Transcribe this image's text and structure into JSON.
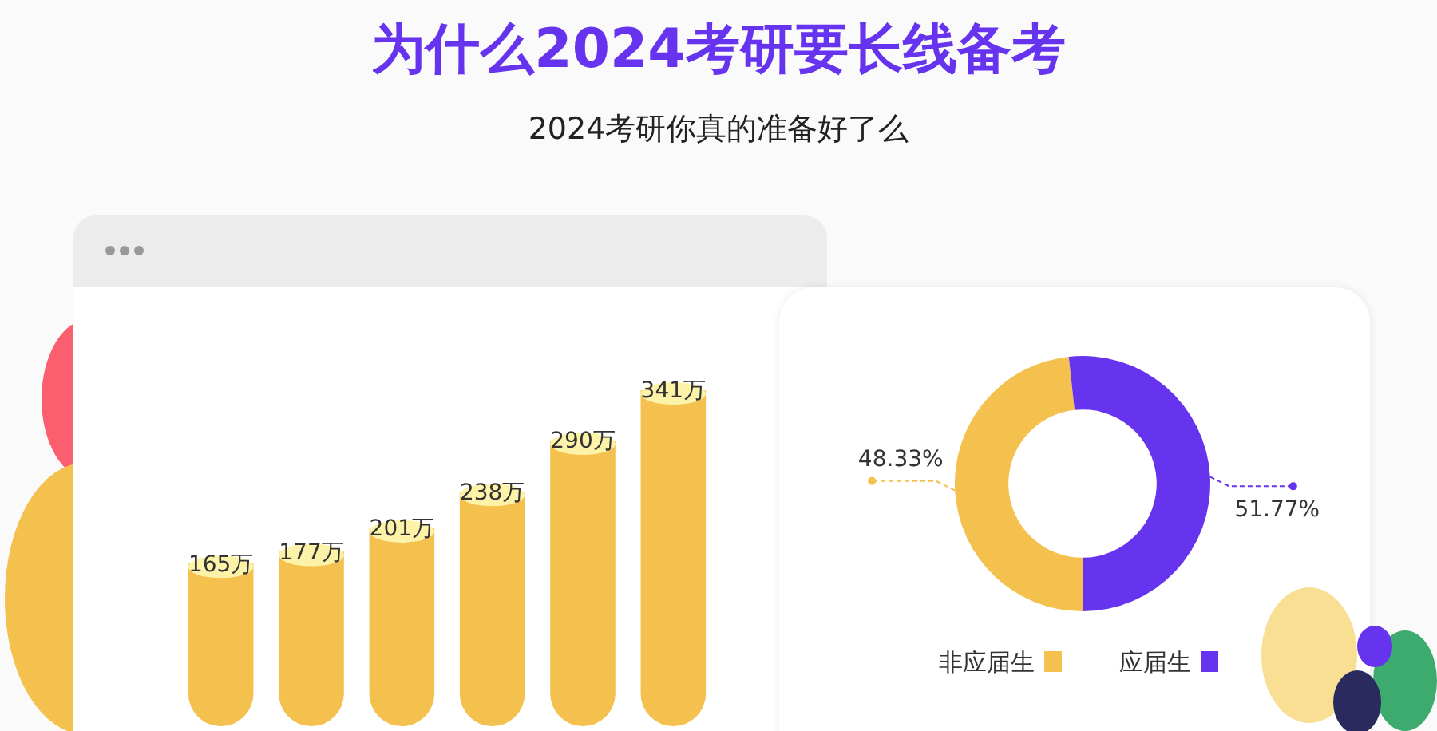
{
  "chart_data": [
    {
      "type": "bar",
      "title": "为什么2024考研要长线备考",
      "subtitle": "2024考研你真的准备好了么",
      "categories": [
        null,
        null,
        null,
        null,
        null,
        null
      ],
      "values": [
        165,
        177,
        201,
        238,
        290,
        341
      ],
      "value_labels": [
        "165万",
        "177万",
        "201万",
        "238万",
        "290万",
        "341万"
      ],
      "color": "#f4c04e",
      "legend": false
    },
    {
      "type": "donut",
      "categories": [
        "非应届生",
        "应届生"
      ],
      "values": [
        48.33,
        51.77
      ],
      "value_labels": [
        "48.33%",
        "51.77%"
      ],
      "colors": [
        "#f4c04e",
        "#6633ee"
      ],
      "legend": "bottom"
    }
  ]
}
